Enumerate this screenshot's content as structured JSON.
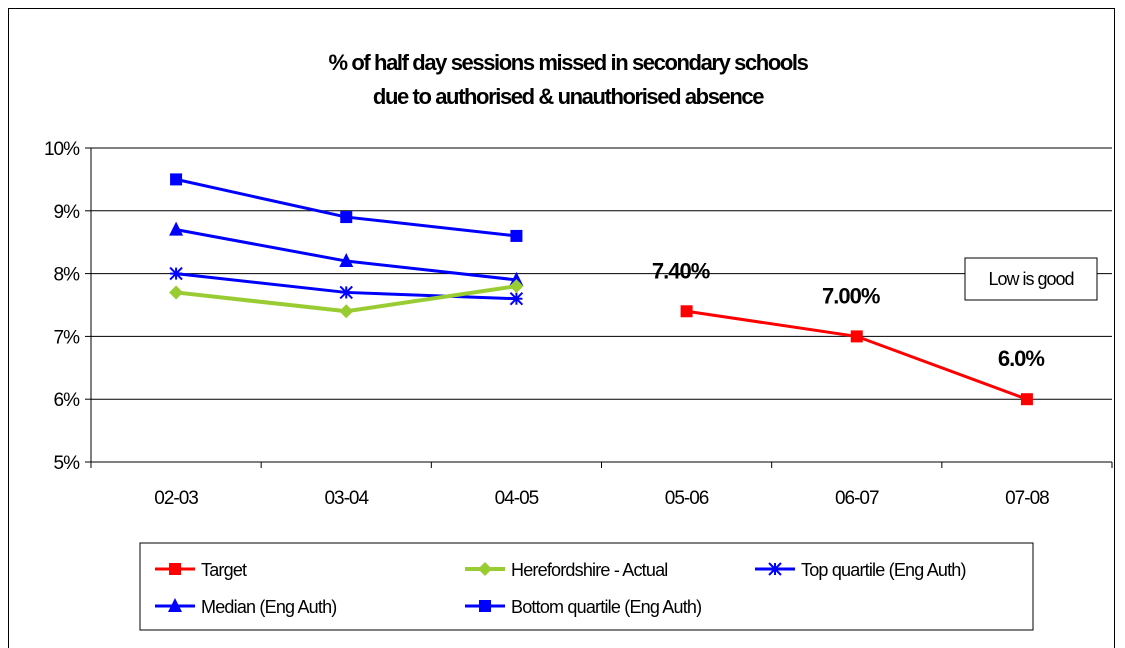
{
  "chart_data": {
    "type": "line",
    "title": "% of half day sessions missed in secondary schools due to authorised & unauthorised absence",
    "title_lines": [
      "% of half day sessions missed in secondary schools",
      "due to authorised & unauthorised absence"
    ],
    "xlabel": "",
    "ylabel": "",
    "categories": [
      "02-03",
      "03-04",
      "04-05",
      "05-06",
      "06-07",
      "07-08"
    ],
    "ylim": [
      5,
      10
    ],
    "yticks": [
      5,
      6,
      7,
      8,
      9,
      10
    ],
    "ytick_labels": [
      "5%",
      "6%",
      "7%",
      "8%",
      "9%",
      "10%"
    ],
    "grid": true,
    "legend_position": "bottom",
    "annotation": "Low is good",
    "series": [
      {
        "name": "Target",
        "values": [
          null,
          null,
          null,
          7.4,
          7.0,
          6.0
        ],
        "color": "#ff0000",
        "marker": "square",
        "labels": [
          null,
          null,
          null,
          "7.40%",
          "7.00%",
          "6.0%"
        ]
      },
      {
        "name": "Herefordshire - Actual",
        "values": [
          7.7,
          7.4,
          7.8,
          null,
          null,
          null
        ],
        "color": "#99cc33",
        "marker": "diamond"
      },
      {
        "name": "Top quartile (Eng Auth)",
        "values": [
          8.0,
          7.7,
          7.6,
          null,
          null,
          null
        ],
        "color": "#0000ff",
        "marker": "asterisk"
      },
      {
        "name": "Median (Eng Auth)",
        "values": [
          8.7,
          8.2,
          7.9,
          null,
          null,
          null
        ],
        "color": "#0000ff",
        "marker": "triangle"
      },
      {
        "name": "Bottom quartile (Eng Auth)",
        "values": [
          9.5,
          8.9,
          8.6,
          null,
          null,
          null
        ],
        "color": "#0000ff",
        "marker": "square"
      }
    ]
  }
}
